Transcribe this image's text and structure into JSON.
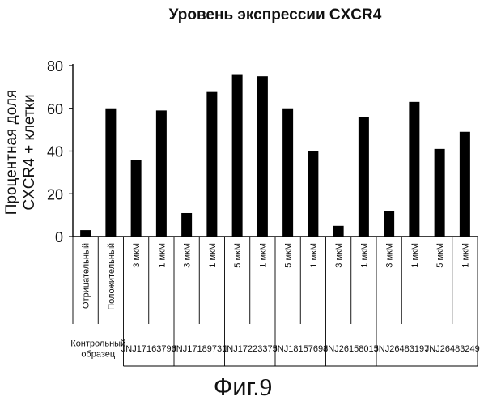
{
  "chart_data": {
    "type": "bar",
    "title": "Уровень экспрессии CXCR4",
    "ylabel": [
      "Процентная доля",
      "CXCR4 + клетки"
    ],
    "xlabel": "",
    "ylim": [
      0,
      80
    ],
    "yticks": [
      0,
      20,
      40,
      60,
      80
    ],
    "grid": false,
    "legend": "none",
    "bar_color": "#000000",
    "categories": [
      "Отрицательный",
      "Положительный",
      "3 мкМ",
      "1 мкМ",
      "3 мкМ",
      "1 мкМ",
      "5 мкМ",
      "1 мкМ",
      "5 мкМ",
      "1 мкМ",
      "3 мкМ",
      "1 мкМ",
      "3 мкМ",
      "1 мкМ",
      "5 мкМ",
      "1 мкМ"
    ],
    "values": [
      3,
      60,
      36,
      59,
      11,
      68,
      76,
      75,
      60,
      40,
      5,
      56,
      12,
      63,
      41,
      49
    ],
    "groups": [
      {
        "label": [
          "Контрольный",
          "образец"
        ],
        "span": 2
      },
      {
        "label": [
          "JNJ17163796"
        ],
        "span": 2
      },
      {
        "label": [
          "JNJ17189731"
        ],
        "span": 2
      },
      {
        "label": [
          "JNJ17223375"
        ],
        "span": 2
      },
      {
        "label": [
          "JNJ18157698"
        ],
        "span": 2
      },
      {
        "label": [
          "JNJ26158015"
        ],
        "span": 2
      },
      {
        "label": [
          "JNJ26483197"
        ],
        "span": 2
      },
      {
        "label": [
          "JNJ26483249"
        ],
        "span": 2
      }
    ]
  },
  "figure": {
    "label": "Фиг.",
    "number": "9"
  }
}
